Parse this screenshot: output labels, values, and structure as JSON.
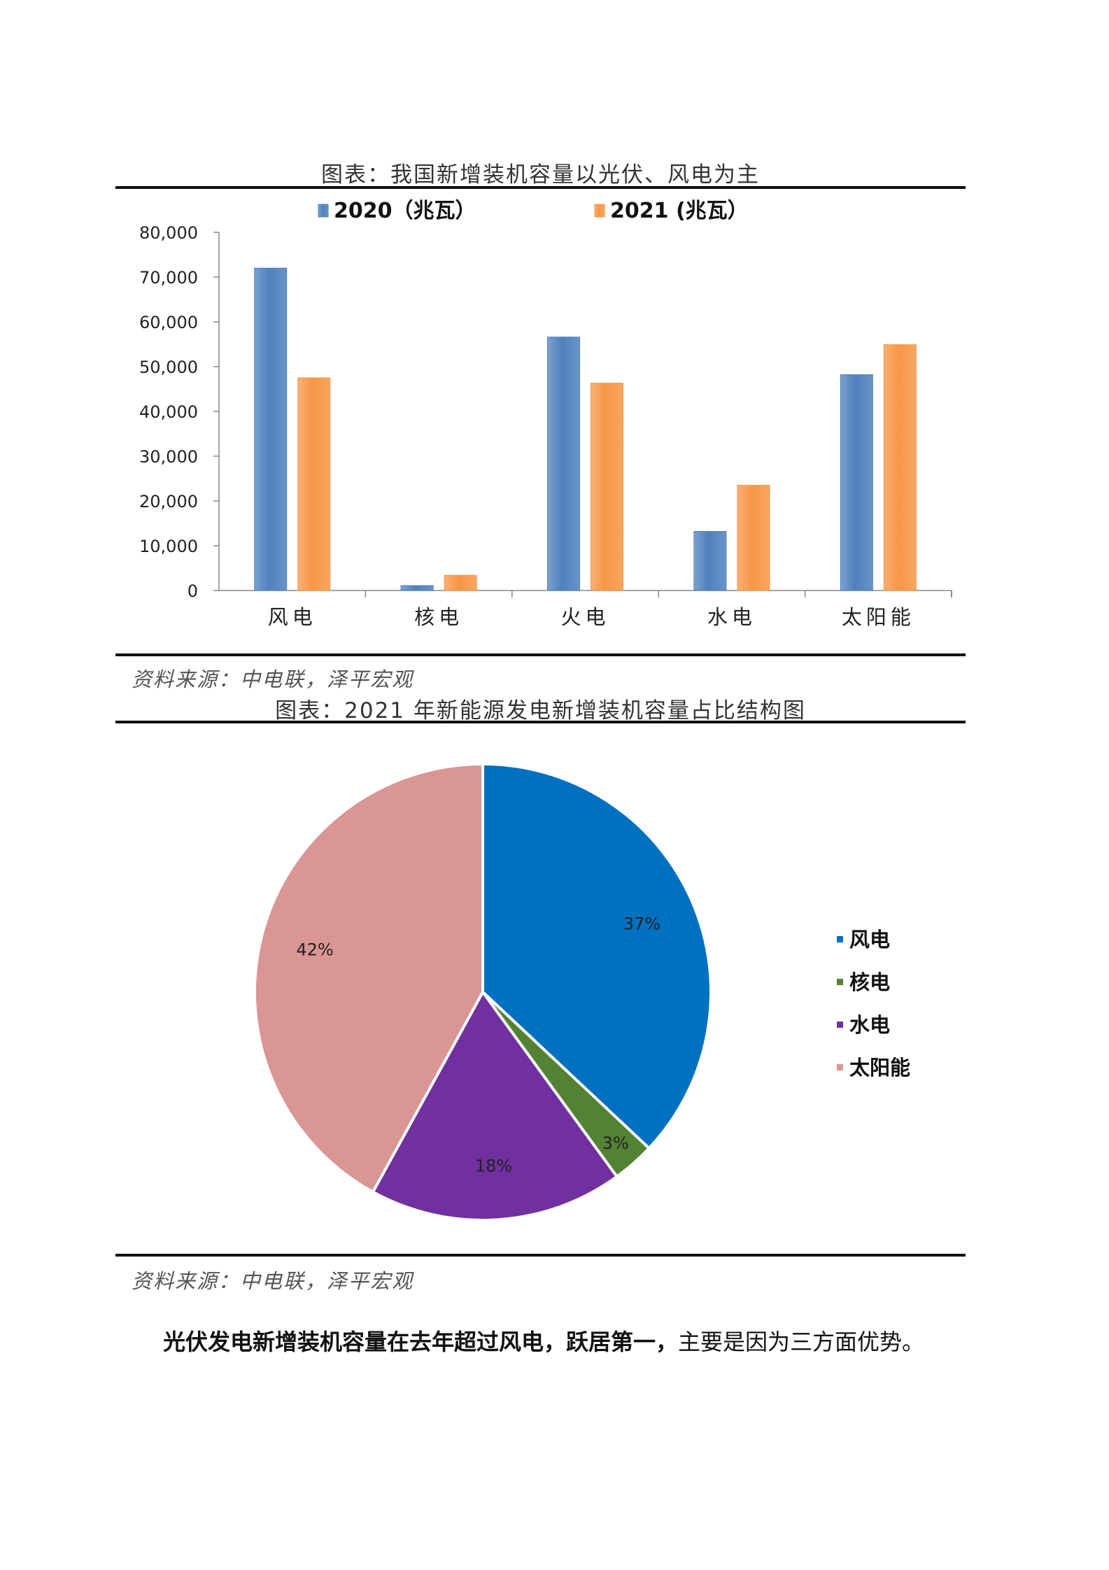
{
  "figure1": {
    "caption": "图表：我国新增装机容量以光伏、风电为主",
    "source": "资料来源：中电联，泽平宏观",
    "chart_data": {
      "type": "bar",
      "categories": [
        "风电",
        "核电",
        "火电",
        "水电",
        "太阳能"
      ],
      "series": [
        {
          "name": "2020（兆瓦）",
          "color": "#4F81BD",
          "values": [
            72000,
            1100,
            56600,
            13200,
            48200
          ]
        },
        {
          "name": "2021 (兆瓦）",
          "color": "#F79646",
          "values": [
            47500,
            3400,
            46300,
            23500,
            54900
          ]
        }
      ],
      "ylim": [
        0,
        80000
      ],
      "yticks": [
        0,
        10000,
        20000,
        30000,
        40000,
        50000,
        60000,
        70000,
        80000
      ],
      "ytick_labels": [
        "0",
        "10,000",
        "20,000",
        "30,000",
        "40,000",
        "50,000",
        "60,000",
        "70,000",
        "80,000"
      ],
      "legend": "top-center",
      "grid": false
    }
  },
  "figure2": {
    "caption": "图表：2021 年新能源发电新增装机容量占比结构图",
    "source": "资料来源：中电联，泽平宏观",
    "chart_data": {
      "type": "pie",
      "labels": [
        "风电",
        "核电",
        "水电",
        "太阳能"
      ],
      "values": [
        37,
        3,
        18,
        42
      ],
      "value_labels": [
        "37%",
        "3%",
        "18%",
        "42%"
      ],
      "colors": [
        "#0070C0",
        "#548235",
        "#7030A0",
        "#D99694"
      ],
      "legend": "right"
    }
  },
  "paragraph": {
    "bold": "光伏发电新增装机容量在去年超过风电，跃居第一，",
    "normal": "主要是因为三方面优势。"
  }
}
